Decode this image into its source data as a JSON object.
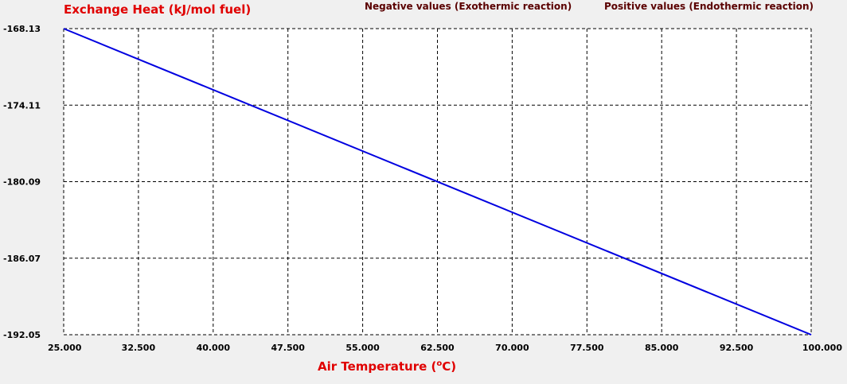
{
  "colors": {
    "background": "#f0f0f0",
    "plot_bg": "#ffffff",
    "axis_title": "#e00000",
    "note_text": "#5a0000",
    "series_line": "#0000e0",
    "grid": "#000000"
  },
  "notes": {
    "negative": "Negative values (Exothermic reaction)",
    "positive": "Positive values (Endothermic reaction)"
  },
  "chart_data": {
    "type": "line",
    "ylabel": "Exchange Heat (kJ/mol fuel)",
    "xlabel": "Air Temperature (",
    "xlabel_super": "o",
    "xlabel_tail": "C)",
    "xlim": [
      25.0,
      100.0
    ],
    "ylim": [
      -192.05,
      -168.13
    ],
    "x_ticks": [
      "25.000",
      "32.500",
      "40.000",
      "47.500",
      "55.000",
      "62.500",
      "70.000",
      "77.500",
      "85.000",
      "92.500",
      "100.000"
    ],
    "y_ticks": [
      "-168.13",
      "-174.11",
      "-180.09",
      "-186.07",
      "-192.05"
    ],
    "grid": true,
    "series": [
      {
        "x": [
          25.0,
          100.0
        ],
        "y": [
          -168.13,
          -192.05
        ]
      }
    ]
  }
}
